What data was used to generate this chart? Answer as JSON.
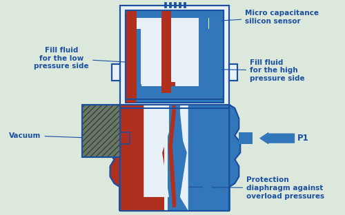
{
  "bg": "#dde8dd",
  "white": "#e8f0f8",
  "bd": "#1a4fa0",
  "bf": "#3377bb",
  "rf": "#b03020",
  "gh": "#6a7868",
  "tc": "#1a4fa0",
  "fs": 7.5,
  "labels": {
    "micro": "Micro capacitance\nsilicon sensor",
    "fill_low": "Fill fluid\nfor the low\npressure side",
    "fill_high": "Fill fluid\nfor the high\npressure side",
    "vacuum": "Vacuum",
    "p1": "P1",
    "protection": "Protection\ndiaphragm against\noverload pressures"
  }
}
